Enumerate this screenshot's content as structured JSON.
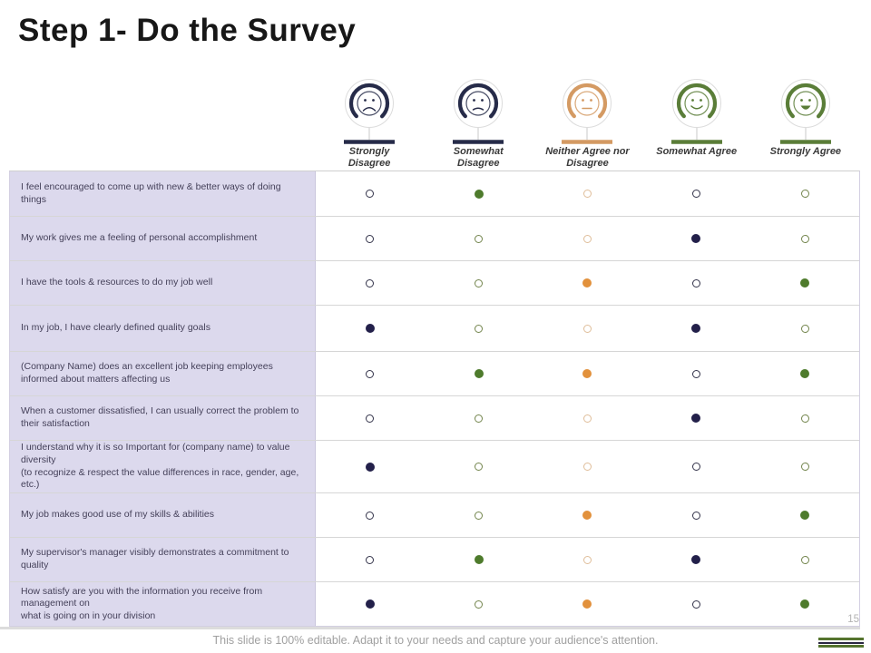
{
  "slide": {
    "title": "Step 1- Do the Survey",
    "page_number": "15",
    "footer_note": "This slide is 100% editable. Adapt it to your needs and capture your audience's attention."
  },
  "survey": {
    "options": [
      {
        "label": "Strongly Disagree",
        "mood": "very-sad",
        "icon": "very-sad-face-icon",
        "color": "#262b49",
        "radio_outline": "#33334a",
        "radio_fill": "#23204a"
      },
      {
        "label": "Somewhat Disagree",
        "mood": "sad",
        "icon": "sad-face-icon",
        "color": "#262b49",
        "radio_outline": "#73854d",
        "radio_fill": "#4e7b2c"
      },
      {
        "label": "Neither Agree nor Disagree",
        "mood": "neutral",
        "icon": "neutral-face-icon",
        "color": "#d49a63",
        "radio_outline": "#dfbd99",
        "radio_fill": "#e2913c"
      },
      {
        "label": "Somewhat Agree",
        "mood": "happy",
        "icon": "happy-face-icon",
        "color": "#5a7d38",
        "radio_outline": "#33334a",
        "radio_fill": "#23204a"
      },
      {
        "label": "Strongly Agree",
        "mood": "very-happy",
        "icon": "grinning-face-icon",
        "color": "#5a7d38",
        "radio_outline": "#73854d",
        "radio_fill": "#4e7b2c"
      }
    ],
    "rows": [
      {
        "question": "I feel encouraged to come up with new & better ways of doing things",
        "selected": [
          false,
          true,
          false,
          false,
          false
        ]
      },
      {
        "question": "My work gives me a feeling of personal accomplishment",
        "selected": [
          false,
          false,
          false,
          true,
          false
        ]
      },
      {
        "question": "I have the tools & resources to do my job well",
        "selected": [
          false,
          false,
          true,
          false,
          true
        ]
      },
      {
        "question": "In my job, I have clearly defined quality goals",
        "selected": [
          true,
          false,
          false,
          true,
          false
        ]
      },
      {
        "question": "(Company Name) does an excellent job keeping employees informed about matters affecting us",
        "selected": [
          false,
          true,
          true,
          false,
          true
        ]
      },
      {
        "question": "When a customer dissatisfied, I can usually correct the problem to their satisfaction",
        "selected": [
          false,
          false,
          false,
          true,
          false
        ]
      },
      {
        "question": "I understand why it is so Important for (company name) to value diversity\n(to recognize & respect the value differences in race, gender, age, etc.)",
        "selected": [
          true,
          false,
          false,
          false,
          false
        ]
      },
      {
        "question": "My job makes good use of my skills & abilities",
        "selected": [
          false,
          false,
          true,
          false,
          true
        ]
      },
      {
        "question": "My supervisor's manager visibly demonstrates a commitment to quality",
        "selected": [
          false,
          true,
          false,
          true,
          false
        ]
      },
      {
        "question": "How satisfy are you with the information you receive from management on\nwhat is going on in your division",
        "selected": [
          true,
          false,
          true,
          false,
          true
        ]
      }
    ]
  },
  "logo": {
    "bar_colors": [
      "#55742e",
      "#2a2742",
      "#55742e"
    ]
  }
}
